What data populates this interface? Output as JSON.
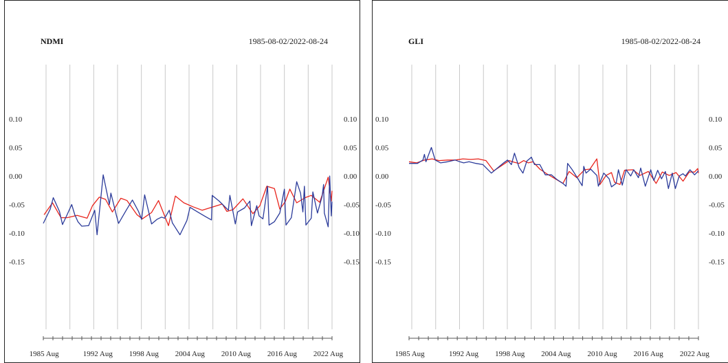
{
  "colors": {
    "series_red": "#e8241c",
    "series_blue": "#2b3b9a",
    "grid": "#c8c8c8",
    "axis": "#555555"
  },
  "chart_data": [
    {
      "type": "line",
      "title": "NDMI",
      "date_range": "1985-08-02/2022-08-24",
      "ylim": [
        -0.2,
        0.15
      ],
      "yticks": [
        0.1,
        0.05,
        0.0,
        -0.05,
        -0.1,
        -0.15
      ],
      "ytick_labels": [
        "0.10",
        "0.05",
        "0.00",
        "-0.05",
        "-0.10",
        "-0.15"
      ],
      "xlim": [
        1985.5,
        2023.1
      ],
      "xtick_labels": [
        "1985 Aug",
        "1992 Aug",
        "1998 Aug",
        "2004 Aug",
        "2010 Aug",
        "2016 Aug",
        "2022 Aug"
      ],
      "xtick_positions": [
        1985.6,
        1992.6,
        1998.6,
        2004.6,
        2010.6,
        2016.6,
        2022.6
      ],
      "grid": true,
      "series": [
        {
          "color": "#e8241c",
          "points": [
            [
              1985.6,
              -0.068
            ],
            [
              1986.7,
              -0.047
            ],
            [
              1987.8,
              -0.073
            ],
            [
              1988.6,
              -0.073
            ],
            [
              1989.3,
              -0.071
            ],
            [
              1989.9,
              -0.069
            ],
            [
              1991.2,
              -0.074
            ],
            [
              1991.9,
              -0.052
            ],
            [
              1992.8,
              -0.037
            ],
            [
              1993.6,
              -0.041
            ],
            [
              1994.5,
              -0.063
            ],
            [
              1995.6,
              -0.039
            ],
            [
              1996.4,
              -0.043
            ],
            [
              1997.7,
              -0.068
            ],
            [
              1998.4,
              -0.075
            ],
            [
              1999.6,
              -0.064
            ],
            [
              2000.5,
              -0.043
            ],
            [
              2001.8,
              -0.087
            ],
            [
              2002.7,
              -0.035
            ],
            [
              2003.8,
              -0.047
            ],
            [
              2005.0,
              -0.054
            ],
            [
              2006.2,
              -0.06
            ],
            [
              2008.8,
              -0.049
            ],
            [
              2009.4,
              -0.062
            ],
            [
              2010.2,
              -0.059
            ],
            [
              2011.5,
              -0.04
            ],
            [
              2012.8,
              -0.066
            ],
            [
              2013.7,
              -0.052
            ],
            [
              2014.6,
              -0.018
            ],
            [
              2015.6,
              -0.022
            ],
            [
              2016.3,
              -0.058
            ],
            [
              2017.0,
              -0.045
            ],
            [
              2017.6,
              -0.023
            ],
            [
              2018.5,
              -0.047
            ],
            [
              2019.6,
              -0.038
            ],
            [
              2020.4,
              -0.034
            ],
            [
              2021.5,
              -0.046
            ],
            [
              2022.6,
              -0.002
            ],
            [
              2023.0,
              -0.044
            ],
            [
              2023.1,
              -0.026
            ]
          ]
        },
        {
          "color": "#2b3b9a",
          "points": [
            [
              1985.5,
              -0.083
            ],
            [
              1986.4,
              -0.058
            ],
            [
              1986.8,
              -0.038
            ],
            [
              1987.6,
              -0.062
            ],
            [
              1988.0,
              -0.085
            ],
            [
              1988.6,
              -0.068
            ],
            [
              1989.2,
              -0.05
            ],
            [
              1989.6,
              -0.068
            ],
            [
              1990.0,
              -0.08
            ],
            [
              1990.5,
              -0.088
            ],
            [
              1991.4,
              -0.087
            ],
            [
              1992.2,
              -0.06
            ],
            [
              1992.5,
              -0.103
            ],
            [
              1993.3,
              0.002
            ],
            [
              1994.1,
              -0.05
            ],
            [
              1994.3,
              -0.03
            ],
            [
              1995.0,
              -0.068
            ],
            [
              1995.3,
              -0.083
            ],
            [
              1996.3,
              -0.06
            ],
            [
              1997.1,
              -0.042
            ],
            [
              1997.9,
              -0.062
            ],
            [
              1998.3,
              -0.076
            ],
            [
              1998.7,
              -0.033
            ],
            [
              1999.6,
              -0.084
            ],
            [
              2000.3,
              -0.076
            ],
            [
              2000.9,
              -0.072
            ],
            [
              2001.3,
              -0.074
            ],
            [
              2001.9,
              -0.06
            ],
            [
              2002.3,
              -0.082
            ],
            [
              2003.3,
              -0.103
            ],
            [
              2004.2,
              -0.078
            ],
            [
              2004.6,
              -0.055
            ],
            [
              2005.6,
              -0.063
            ],
            [
              2006.6,
              -0.071
            ],
            [
              2007.4,
              -0.077
            ],
            [
              2007.5,
              -0.034
            ],
            [
              2008.4,
              -0.044
            ],
            [
              2009.6,
              -0.06
            ],
            [
              2009.8,
              -0.034
            ],
            [
              2010.5,
              -0.084
            ],
            [
              2010.8,
              -0.063
            ],
            [
              2011.7,
              -0.056
            ],
            [
              2012.4,
              -0.044
            ],
            [
              2012.6,
              -0.087
            ],
            [
              2013.3,
              -0.052
            ],
            [
              2013.6,
              -0.07
            ],
            [
              2014.1,
              -0.075
            ],
            [
              2014.7,
              -0.018
            ],
            [
              2014.9,
              -0.086
            ],
            [
              2015.6,
              -0.08
            ],
            [
              2016.3,
              -0.065
            ],
            [
              2016.9,
              -0.023
            ],
            [
              2017.1,
              -0.086
            ],
            [
              2017.8,
              -0.073
            ],
            [
              2018.5,
              -0.01
            ],
            [
              2019.0,
              -0.03
            ],
            [
              2019.3,
              -0.063
            ],
            [
              2019.5,
              -0.018
            ],
            [
              2019.7,
              -0.086
            ],
            [
              2020.4,
              -0.074
            ],
            [
              2020.6,
              -0.028
            ],
            [
              2021.2,
              -0.065
            ],
            [
              2021.8,
              -0.036
            ],
            [
              2022.0,
              -0.015
            ],
            [
              2022.1,
              -0.065
            ],
            [
              2022.6,
              -0.089
            ],
            [
              2022.8,
              0.0
            ],
            [
              2023.0,
              -0.07
            ],
            [
              2023.1,
              -0.045
            ]
          ]
        }
      ]
    },
    {
      "type": "line",
      "title": "GLI",
      "date_range": "1985-08-02/2022-08-24",
      "ylim": [
        -0.2,
        0.15
      ],
      "yticks": [
        0.1,
        0.05,
        0.0,
        -0.05,
        -0.1,
        -0.15
      ],
      "ytick_labels": [
        "0.10",
        "0.05",
        "0.00",
        "-0.05",
        "-0.10",
        "-0.15"
      ],
      "xlim": [
        1985.5,
        2023.1
      ],
      "xtick_labels": [
        "1985 Aug",
        "1992 Aug",
        "1998 Aug",
        "2004 Aug",
        "2010 Aug",
        "2016 Aug",
        "2022 Aug"
      ],
      "xtick_positions": [
        1985.6,
        1992.6,
        1998.6,
        2004.6,
        2010.6,
        2016.6,
        2022.6
      ],
      "grid": true,
      "series": [
        {
          "color": "#e8241c",
          "points": [
            [
              1985.5,
              0.025
            ],
            [
              1986.5,
              0.023
            ],
            [
              1987.5,
              0.028
            ],
            [
              1988.5,
              0.03
            ],
            [
              1989.4,
              0.027
            ],
            [
              1990.5,
              0.028
            ],
            [
              1991.5,
              0.028
            ],
            [
              1992.5,
              0.03
            ],
            [
              1993.5,
              0.029
            ],
            [
              1994.5,
              0.03
            ],
            [
              1995.5,
              0.027
            ],
            [
              1996.5,
              0.009
            ],
            [
              1997.5,
              0.018
            ],
            [
              1998.5,
              0.027
            ],
            [
              1999.2,
              0.024
            ],
            [
              1999.8,
              0.022
            ],
            [
              2000.4,
              0.027
            ],
            [
              2001.0,
              0.023
            ],
            [
              2001.6,
              0.025
            ],
            [
              2002.5,
              0.012
            ],
            [
              2003.5,
              0.003
            ],
            [
              2004.5,
              -0.005
            ],
            [
              2005.5,
              -0.013
            ],
            [
              2006.3,
              0.008
            ],
            [
              2007.3,
              -0.003
            ],
            [
              2008.3,
              0.011
            ],
            [
              2009.0,
              0.012
            ],
            [
              2009.9,
              0.03
            ],
            [
              2010.3,
              -0.015
            ],
            [
              2011.1,
              0.001
            ],
            [
              2011.8,
              0.006
            ],
            [
              2012.2,
              -0.011
            ],
            [
              2012.9,
              -0.015
            ],
            [
              2013.5,
              0.01
            ],
            [
              2014.6,
              0.011
            ],
            [
              2015.5,
              0.001
            ],
            [
              2016.6,
              0.008
            ],
            [
              2017.6,
              -0.013
            ],
            [
              2018.4,
              0.007
            ],
            [
              2019.3,
              0.001
            ],
            [
              2020.2,
              0.006
            ],
            [
              2021.1,
              -0.009
            ],
            [
              2021.9,
              0.007
            ],
            [
              2022.6,
              0.007
            ],
            [
              2023.0,
              0.013
            ],
            [
              2023.1,
              0.005
            ]
          ]
        },
        {
          "color": "#2b3b9a",
          "points": [
            [
              1985.5,
              0.022
            ],
            [
              1986.6,
              0.022
            ],
            [
              1987.3,
              0.028
            ],
            [
              1987.5,
              0.038
            ],
            [
              1987.7,
              0.025
            ],
            [
              1988.4,
              0.05
            ],
            [
              1988.9,
              0.028
            ],
            [
              1989.6,
              0.023
            ],
            [
              1990.5,
              0.025
            ],
            [
              1991.5,
              0.028
            ],
            [
              1992.1,
              0.025
            ],
            [
              1992.6,
              0.023
            ],
            [
              1993.3,
              0.025
            ],
            [
              1994.2,
              0.022
            ],
            [
              1995.1,
              0.02
            ],
            [
              1996.2,
              0.005
            ],
            [
              1996.9,
              0.013
            ],
            [
              1997.7,
              0.022
            ],
            [
              1998.3,
              0.028
            ],
            [
              1998.8,
              0.02
            ],
            [
              1999.2,
              0.04
            ],
            [
              1999.8,
              0.015
            ],
            [
              2000.3,
              0.005
            ],
            [
              2000.8,
              0.026
            ],
            [
              2001.4,
              0.033
            ],
            [
              2001.8,
              0.02
            ],
            [
              2002.5,
              0.02
            ],
            [
              2003.2,
              0.002
            ],
            [
              2004.0,
              0.002
            ],
            [
              2004.7,
              -0.006
            ],
            [
              2005.5,
              -0.013
            ],
            [
              2005.9,
              -0.018
            ],
            [
              2006.1,
              0.022
            ],
            [
              2006.7,
              0.011
            ],
            [
              2007.5,
              -0.006
            ],
            [
              2008.0,
              -0.017
            ],
            [
              2008.2,
              0.017
            ],
            [
              2008.5,
              0.005
            ],
            [
              2009.1,
              0.012
            ],
            [
              2009.9,
              0.001
            ],
            [
              2010.1,
              -0.018
            ],
            [
              2010.8,
              0.005
            ],
            [
              2011.5,
              -0.005
            ],
            [
              2011.8,
              -0.019
            ],
            [
              2012.4,
              -0.013
            ],
            [
              2012.7,
              0.011
            ],
            [
              2013.2,
              -0.016
            ],
            [
              2013.7,
              0.011
            ],
            [
              2014.3,
              0.0
            ],
            [
              2014.7,
              0.011
            ],
            [
              2015.3,
              -0.003
            ],
            [
              2015.6,
              0.014
            ],
            [
              2016.2,
              -0.018
            ],
            [
              2016.9,
              0.011
            ],
            [
              2017.3,
              -0.008
            ],
            [
              2017.8,
              0.01
            ],
            [
              2018.3,
              -0.005
            ],
            [
              2018.8,
              0.008
            ],
            [
              2019.2,
              -0.022
            ],
            [
              2019.7,
              0.005
            ],
            [
              2020.1,
              -0.022
            ],
            [
              2020.6,
              0.0
            ],
            [
              2021.1,
              0.004
            ],
            [
              2021.4,
              0.0
            ],
            [
              2022.0,
              0.011
            ],
            [
              2022.6,
              0.002
            ],
            [
              2023.1,
              0.009
            ]
          ]
        }
      ]
    }
  ]
}
